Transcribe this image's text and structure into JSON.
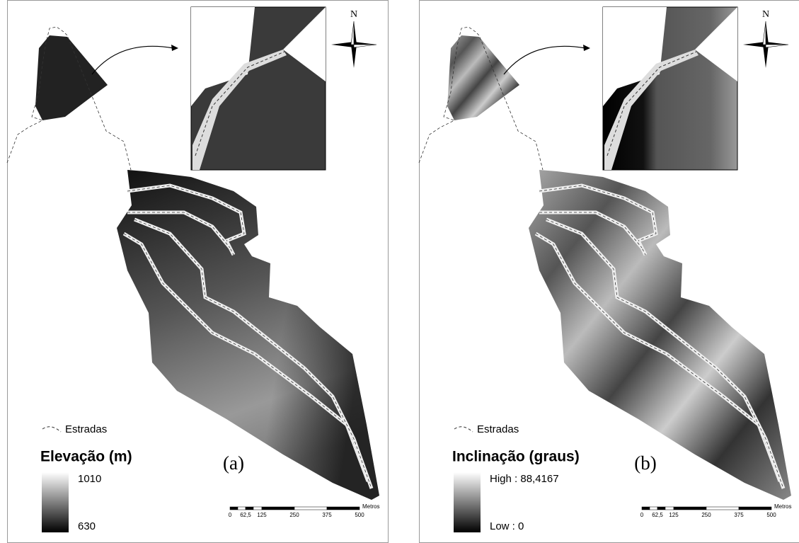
{
  "panels": [
    {
      "north": "N",
      "legend": {
        "roads": "Estradas",
        "title": "Elevação (m)",
        "high": "1010",
        "low": "630"
      },
      "label": "(a)",
      "scale_bar": {
        "ticks": [
          "0",
          "62,5",
          "125",
          "250",
          "375",
          "500"
        ],
        "unit": "Metros"
      }
    },
    {
      "north": "N",
      "legend": {
        "roads": "Estradas",
        "title": "Inclinação (graus)",
        "high": "High : 88,4167",
        "low": "Low : 0"
      },
      "label": "(b)",
      "scale_bar": {
        "ticks": [
          "0",
          "62,5",
          "125",
          "250",
          "375",
          "500"
        ],
        "unit": "Metros"
      }
    }
  ]
}
